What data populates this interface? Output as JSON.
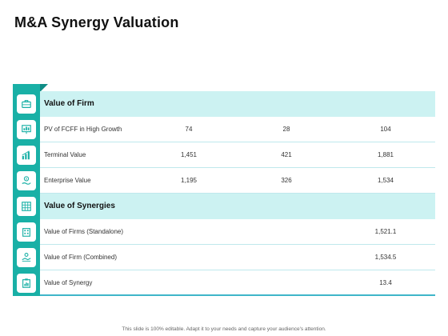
{
  "title": "M&A Synergy Valuation",
  "rows": [
    {
      "type": "section",
      "label": "Value of Firm",
      "icon": "briefcase-icon"
    },
    {
      "type": "data",
      "label": "PV of FCFF in High Growth",
      "values": [
        "74",
        "28",
        "104"
      ],
      "icon": "presentation-board-icon"
    },
    {
      "type": "data",
      "label": "Terminal Value",
      "values": [
        "1,451",
        "421",
        "1,881"
      ],
      "icon": "bar-chart-icon"
    },
    {
      "type": "data",
      "label": "Enterprise Value",
      "values": [
        "1,195",
        "326",
        "1,534"
      ],
      "icon": "hand-dollar-icon"
    },
    {
      "type": "section",
      "label": "Value of Synergies",
      "icon": "grid-table-icon"
    },
    {
      "type": "data",
      "label": "Value of Firms (Standalone)",
      "values": [
        "",
        "",
        "1,521.1"
      ],
      "icon": "building-icon"
    },
    {
      "type": "data",
      "label": "Value of Firm (Combined)",
      "values": [
        "",
        "",
        "1,534.5"
      ],
      "icon": "handshake-icon"
    },
    {
      "type": "data",
      "label": "Value of Synergy",
      "values": [
        "",
        "",
        "13.4"
      ],
      "icon": "clipboard-chart-icon"
    }
  ],
  "footer": "This slide is 100% editable. Adapt it to your needs and capture your audience's attention.",
  "colors": {
    "accent": "#19b0a6",
    "section_bg": "#ccf2f2",
    "row_border": "#bfe8ec",
    "bottom_border": "#3fb6c9"
  }
}
